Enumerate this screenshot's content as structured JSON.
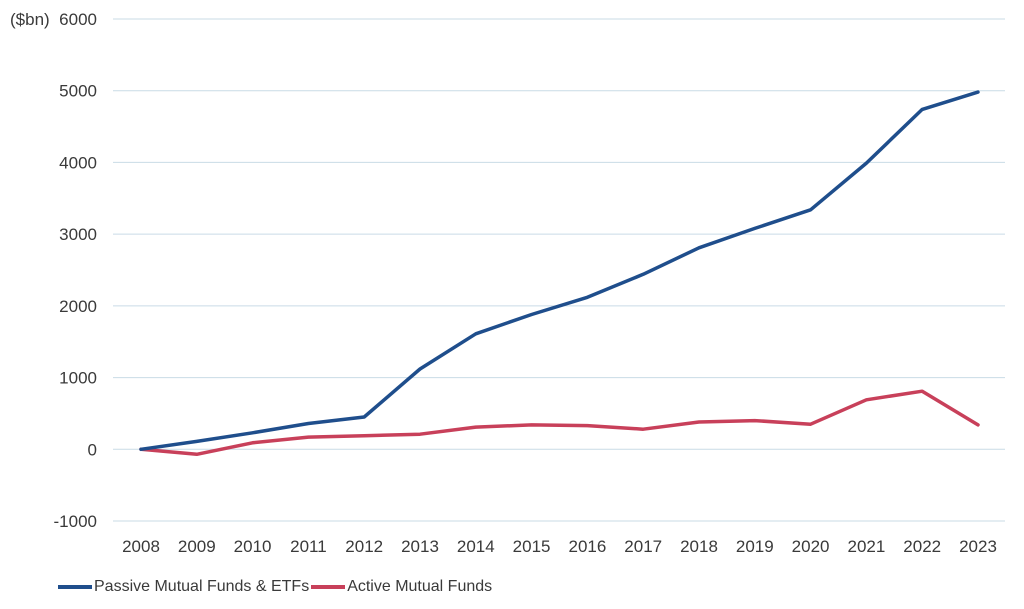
{
  "chart_data": {
    "type": "line",
    "title": "",
    "ylabel": "",
    "unit_label": "($bn)",
    "xlabel": "",
    "x": [
      "2008",
      "2009",
      "2010",
      "2011",
      "2012",
      "2013",
      "2014",
      "2015",
      "2016",
      "2017",
      "2018",
      "2019",
      "2020",
      "2021",
      "2022",
      "2023"
    ],
    "ylim": [
      -1000,
      6000
    ],
    "yticks": [
      "-1000",
      "0",
      "1000",
      "2000",
      "3000",
      "4000",
      "5000",
      "6000"
    ],
    "grid": true,
    "legend_position": "bottom-left",
    "series": [
      {
        "name": "Passive Mutual Funds & ETFs",
        "color": "#1f4e8c",
        "values": [
          0,
          110,
          230,
          360,
          450,
          1120,
          1610,
          1880,
          2120,
          2440,
          2810,
          3080,
          3340,
          3990,
          4740,
          4980
        ]
      },
      {
        "name": "Active Mutual Funds",
        "color": "#c8405a",
        "values": [
          0,
          -70,
          90,
          170,
          190,
          210,
          310,
          340,
          330,
          280,
          380,
          400,
          350,
          690,
          810,
          340
        ]
      }
    ]
  }
}
